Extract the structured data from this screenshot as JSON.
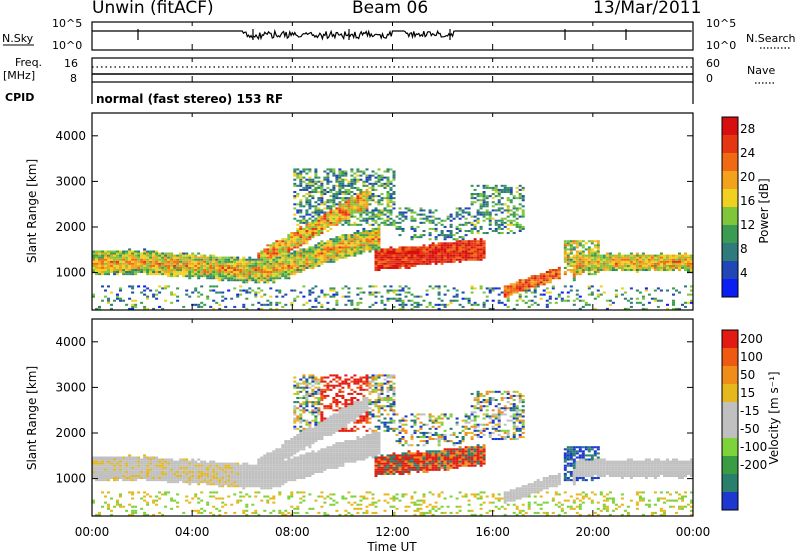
{
  "header": {
    "station": "Unwin (fitACF)",
    "beam": "Beam 06",
    "date": "13/Mar/2011"
  },
  "meta_panel": {
    "nsky_label": "N.Sky",
    "noise_ticks": [
      "10^5",
      "10^0"
    ],
    "nsearch_label": "N.Search",
    "freq_label": "Freq.",
    "freq_unit": "[MHz]",
    "freq_ticks": [
      "16",
      "8"
    ],
    "nave_label": "Nave",
    "nave_ticks": [
      "60",
      "0"
    ],
    "cpid_label": "CPID",
    "cpid_text": "normal (fast stereo) 153 RF"
  },
  "colors": {
    "power": [
      "#0b1ff5",
      "#2147b7",
      "#2f7a7a",
      "#3a9c52",
      "#7fc63b",
      "#f0d020",
      "#f3a21c",
      "#f06a14",
      "#e53612",
      "#d80f0f"
    ],
    "velocity": [
      "#1c38d0",
      "#2a7f6c",
      "#3a9c43",
      "#7ed23a",
      "#c0c0c0",
      "#c0c0c0",
      "#e5b81d",
      "#f08c18",
      "#ef5a12",
      "#e41b12"
    ]
  },
  "chart_data": [
    {
      "type": "heatmap",
      "title": "",
      "xlabel": "Time UT",
      "ylabel": "Slant Range [km]",
      "x_ticks": [
        "00:00",
        "04:00",
        "08:00",
        "12:00",
        "16:00",
        "20:00",
        "00:00"
      ],
      "x_range_hours": [
        0,
        24
      ],
      "y_ticks": [
        1000,
        2000,
        3000,
        4000
      ],
      "ylim": [
        180,
        4500
      ],
      "colorbar_label": "Power [dB]",
      "colorbar_ticks": [
        4,
        8,
        12,
        16,
        20,
        24,
        28
      ],
      "colorbar_range": [
        0,
        30
      ]
    },
    {
      "type": "heatmap",
      "title": "",
      "xlabel": "Time UT",
      "ylabel": "Slant Range [km]",
      "x_ticks": [
        "00:00",
        "04:00",
        "08:00",
        "12:00",
        "16:00",
        "20:00",
        "00:00"
      ],
      "x_range_hours": [
        0,
        24
      ],
      "y_ticks": [
        1000,
        2000,
        3000,
        4000
      ],
      "ylim": [
        180,
        4500
      ],
      "colorbar_label": "Velocity [m s⁻¹]",
      "colorbar_ticks": [
        200,
        100,
        50,
        15,
        -15,
        -50,
        -100,
        -200
      ],
      "colorbar_range": [
        -250,
        250
      ]
    }
  ]
}
